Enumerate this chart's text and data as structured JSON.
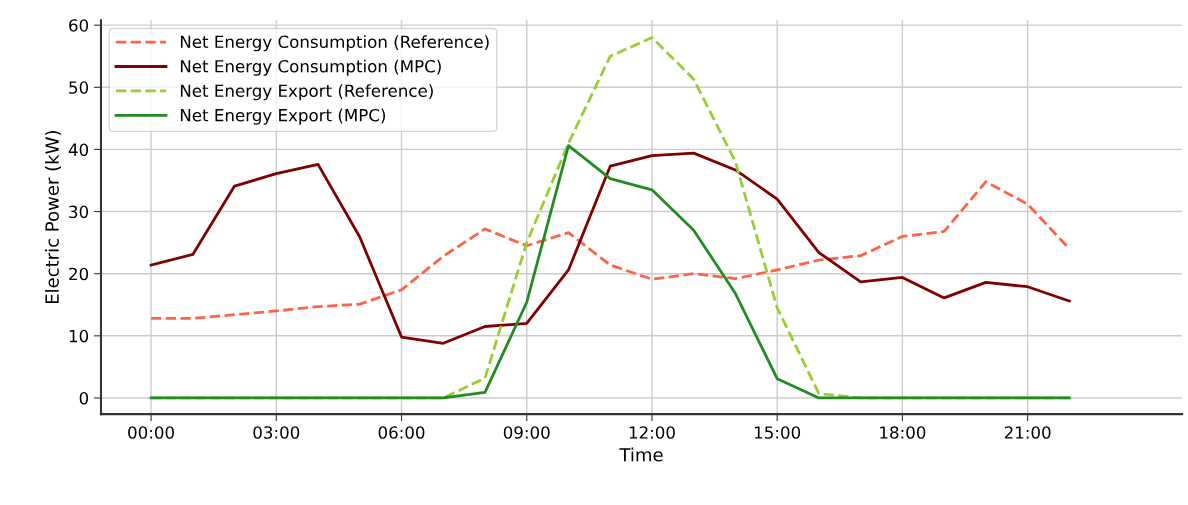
{
  "chart_data": {
    "type": "line",
    "xlabel": "Time",
    "ylabel": "Electric Power (kW)",
    "x": [
      0,
      1,
      2,
      3,
      4,
      5,
      6,
      7,
      8,
      9,
      10,
      11,
      12,
      13,
      14,
      15,
      16,
      17,
      18,
      19,
      20,
      21,
      22
    ],
    "xlim": [
      -1.2,
      24.7
    ],
    "ylim": [
      -2.6,
      60.8
    ],
    "xticks": [
      {
        "value": 0,
        "label": "00:00"
      },
      {
        "value": 3,
        "label": "03:00"
      },
      {
        "value": 6,
        "label": "06:00"
      },
      {
        "value": 9,
        "label": "09:00"
      },
      {
        "value": 12,
        "label": "12:00"
      },
      {
        "value": 15,
        "label": "15:00"
      },
      {
        "value": 18,
        "label": "18:00"
      },
      {
        "value": 21,
        "label": "21:00"
      }
    ],
    "yticks": [
      0,
      10,
      20,
      30,
      40,
      50,
      60
    ],
    "grid": true,
    "legend": "top left",
    "series": [
      {
        "name": "Net Energy Consumption (Reference)",
        "color": "#ff6347",
        "line_style": "dashed",
        "values": [
          12.8,
          12.8,
          13.4,
          14.0,
          14.7,
          15.1,
          17.4,
          22.8,
          27.2,
          24.5,
          26.6,
          21.4,
          19.1,
          20.0,
          19.2,
          20.6,
          22.2,
          22.9,
          26.0,
          26.8,
          34.8,
          31.2,
          24.0
        ]
      },
      {
        "name": "Net Energy Consumption (MPC)",
        "color": "#800000",
        "line_style": "solid",
        "values": [
          21.4,
          23.1,
          34.1,
          36.1,
          37.6,
          25.9,
          9.8,
          8.8,
          11.5,
          12.0,
          20.6,
          37.3,
          39.0,
          39.4,
          36.7,
          32.0,
          23.4,
          18.7,
          19.4,
          16.1,
          18.6,
          17.9,
          15.6
        ]
      },
      {
        "name": "Net Energy Export (Reference)",
        "color": "#9acd32",
        "line_style": "dashed",
        "values": [
          0,
          0,
          0,
          0,
          0,
          0,
          0,
          0,
          3.2,
          25.0,
          41.0,
          55.0,
          58.0,
          51.3,
          38.0,
          14.5,
          0.7,
          0,
          0,
          0,
          0,
          0,
          0
        ]
      },
      {
        "name": "Net Energy Export (MPC)",
        "color": "#228b22",
        "line_style": "solid",
        "values": [
          0,
          0,
          0,
          0,
          0,
          0,
          0,
          0,
          0.9,
          15.4,
          40.6,
          35.3,
          33.5,
          27.0,
          16.8,
          3.1,
          0,
          0,
          0,
          0,
          0,
          0,
          0
        ]
      }
    ]
  }
}
